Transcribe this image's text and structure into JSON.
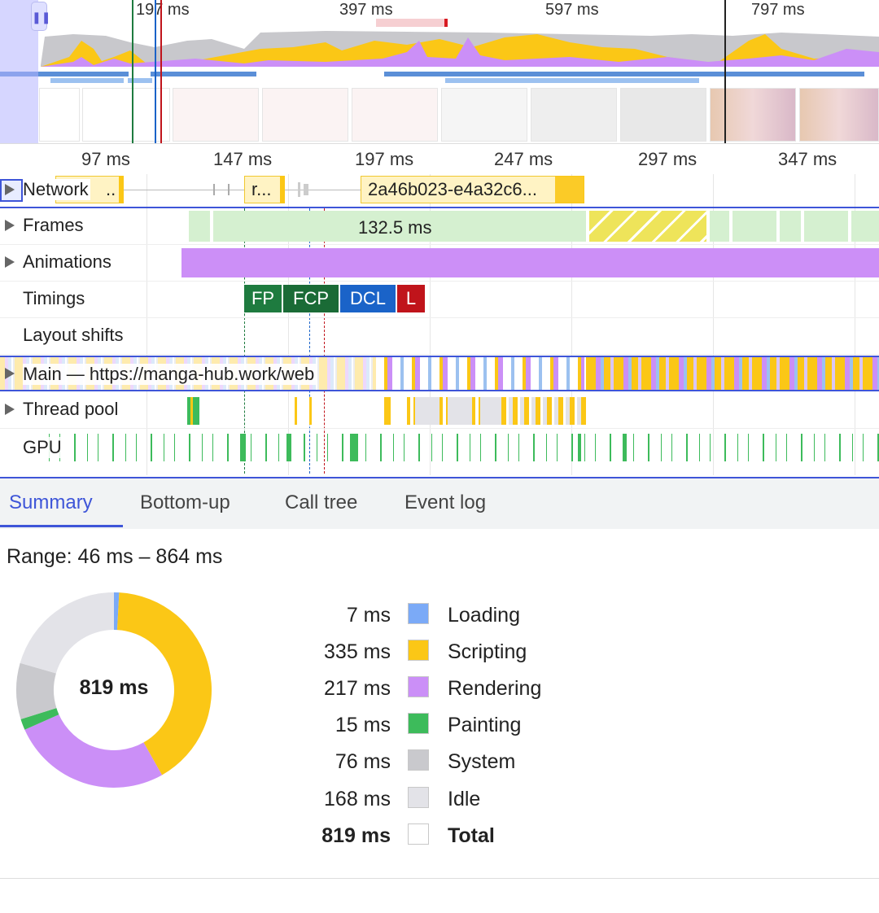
{
  "overview": {
    "tick_labels": [
      "197 ms",
      "397 ms",
      "597 ms",
      "797 ms"
    ],
    "pause_icon": "pause-icon"
  },
  "ruler": {
    "tick_labels": [
      "97 ms",
      "147 ms",
      "197 ms",
      "247 ms",
      "297 ms",
      "347 ms"
    ]
  },
  "tracks": {
    "network": {
      "label": "Network",
      "items": [
        "..",
        "r...",
        "2a46b023-e4a32c6..."
      ]
    },
    "frames": {
      "label": "Frames",
      "frame_label": "132.5 ms"
    },
    "animations": {
      "label": "Animations"
    },
    "timings": {
      "label": "Timings",
      "markers": [
        "FP",
        "FCP",
        "DCL",
        "L"
      ]
    },
    "layout_shifts": {
      "label": "Layout shifts"
    },
    "main": {
      "label": "Main — https://manga-hub.work/web"
    },
    "thread_pool": {
      "label": "Thread pool"
    },
    "gpu": {
      "label": "GPU"
    }
  },
  "tabs": [
    "Summary",
    "Bottom-up",
    "Call tree",
    "Event log"
  ],
  "summary": {
    "range_text": "Range: 46 ms – 864 ms",
    "total_center": "819 ms",
    "items": [
      {
        "value": "7 ms",
        "name": "Loading",
        "color": "#7baaf7"
      },
      {
        "value": "335 ms",
        "name": "Scripting",
        "color": "#fbc716"
      },
      {
        "value": "217 ms",
        "name": "Rendering",
        "color": "#cb8ff7"
      },
      {
        "value": "15 ms",
        "name": "Painting",
        "color": "#3dbb5b"
      },
      {
        "value": "76 ms",
        "name": "System",
        "color": "#c9c9cd"
      },
      {
        "value": "168 ms",
        "name": "Idle",
        "color": "#e3e3e8"
      }
    ],
    "total": {
      "value": "819 ms",
      "name": "Total"
    }
  },
  "colors": {
    "accent": "#3e55d8",
    "fp": "#1e7b3f",
    "fcp": "#1a6b36",
    "dcl": "#1a63c8",
    "load": "#c0141b",
    "frames": "#d5f0d0",
    "animations": "#cc8ff7"
  }
}
